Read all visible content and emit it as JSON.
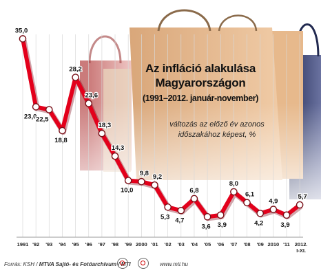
{
  "chart_data": {
    "type": "line",
    "title": "Az infláció alakulása Magyarországon",
    "subtitle": "(1991–2012. január-november)",
    "note_line1": "változás az előző év azonos",
    "note_line2": "időszakához képest, %",
    "categories": [
      "1991",
      "'92",
      "'93",
      "'94",
      "'95",
      "'96",
      "'97",
      "'98",
      "'99",
      "2000",
      "'01",
      "'02",
      "'03",
      "'04",
      "'05",
      "'06",
      "'07",
      "'08",
      "'09",
      "2010",
      "'11",
      "2012. I-XI."
    ],
    "values": [
      35.0,
      23.0,
      22.5,
      18.8,
      28.2,
      23.6,
      18.3,
      14.3,
      10.0,
      9.8,
      9.2,
      5.3,
      4.7,
      6.8,
      3.6,
      3.9,
      8.0,
      6.1,
      4.2,
      4.9,
      3.9,
      5.7
    ],
    "value_labels": [
      "35,0",
      "23,0",
      "22,5",
      "18,8",
      "28,2",
      "23,6",
      "18,3",
      "14,3",
      "10,0",
      "9,8",
      "9,2",
      "5,3",
      "4,7",
      "6,8",
      "3,6",
      "3,9",
      "8,0",
      "6,1",
      "4,2",
      "4,9",
      "3,9",
      "5,7"
    ],
    "ylim": [
      0,
      37
    ],
    "grid": true,
    "line_color": "#e3001b"
  },
  "footer": {
    "source_prefix": "Forrás: KSH / ",
    "source_bold": "MTVA Sajtó- és Fotóarchívum / MTI",
    "url": "www.mti.hu"
  }
}
